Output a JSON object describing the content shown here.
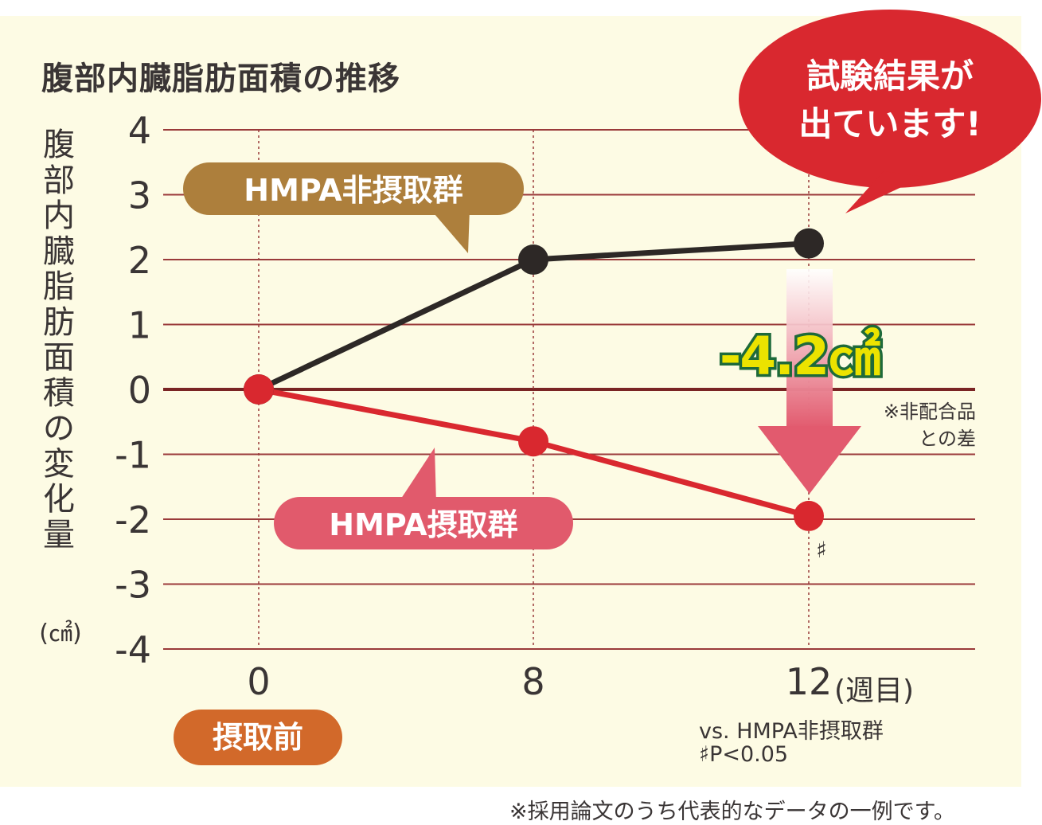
{
  "chart_data": {
    "type": "line",
    "title": "腹部内臓脂肪面積の推移",
    "ylabel": "腹部内臓脂肪面積の変化量",
    "ylabel_unit": "(㎠)",
    "xlabel_unit": "(週目)",
    "x": [
      0,
      8,
      12
    ],
    "x_tick_labels": [
      "0",
      "8",
      "12"
    ],
    "ylim": [
      -4,
      4
    ],
    "y_ticks": [
      "4",
      "3",
      "2",
      "1",
      "0",
      "-1",
      "-2",
      "-3",
      "-4"
    ],
    "grid": true,
    "series": [
      {
        "name": "HMPA非摂取群",
        "values": [
          0,
          2.0,
          2.25
        ],
        "color": "#2d2826"
      },
      {
        "name": "HMPA摂取群",
        "values": [
          0,
          -0.8,
          -1.95
        ],
        "color": "#d9282f"
      }
    ]
  },
  "labels": {
    "pre_intake": "摂取前",
    "callout_line1": "試験結果が",
    "callout_line2": "出ています!",
    "difference": "-4.2㎠",
    "difference_note_line1": "※非配合品",
    "difference_note_line2": "との差",
    "significance_mark": "♯",
    "stat_line1": "vs. HMPA非摂取群",
    "stat_line2": "♯P<0.05",
    "footer": "※採用論文のうち代表的なデータの一例です。"
  },
  "colors": {
    "background": "#fdfbe4",
    "grid": "#8a2a2a",
    "control_badge": "#ad7f3c",
    "treatment_badge": "#e15a6c",
    "callout": "#d9282f",
    "pre_badge": "#d2692a",
    "difference_text": "#ece300",
    "difference_outline": "#1e6a3a"
  }
}
